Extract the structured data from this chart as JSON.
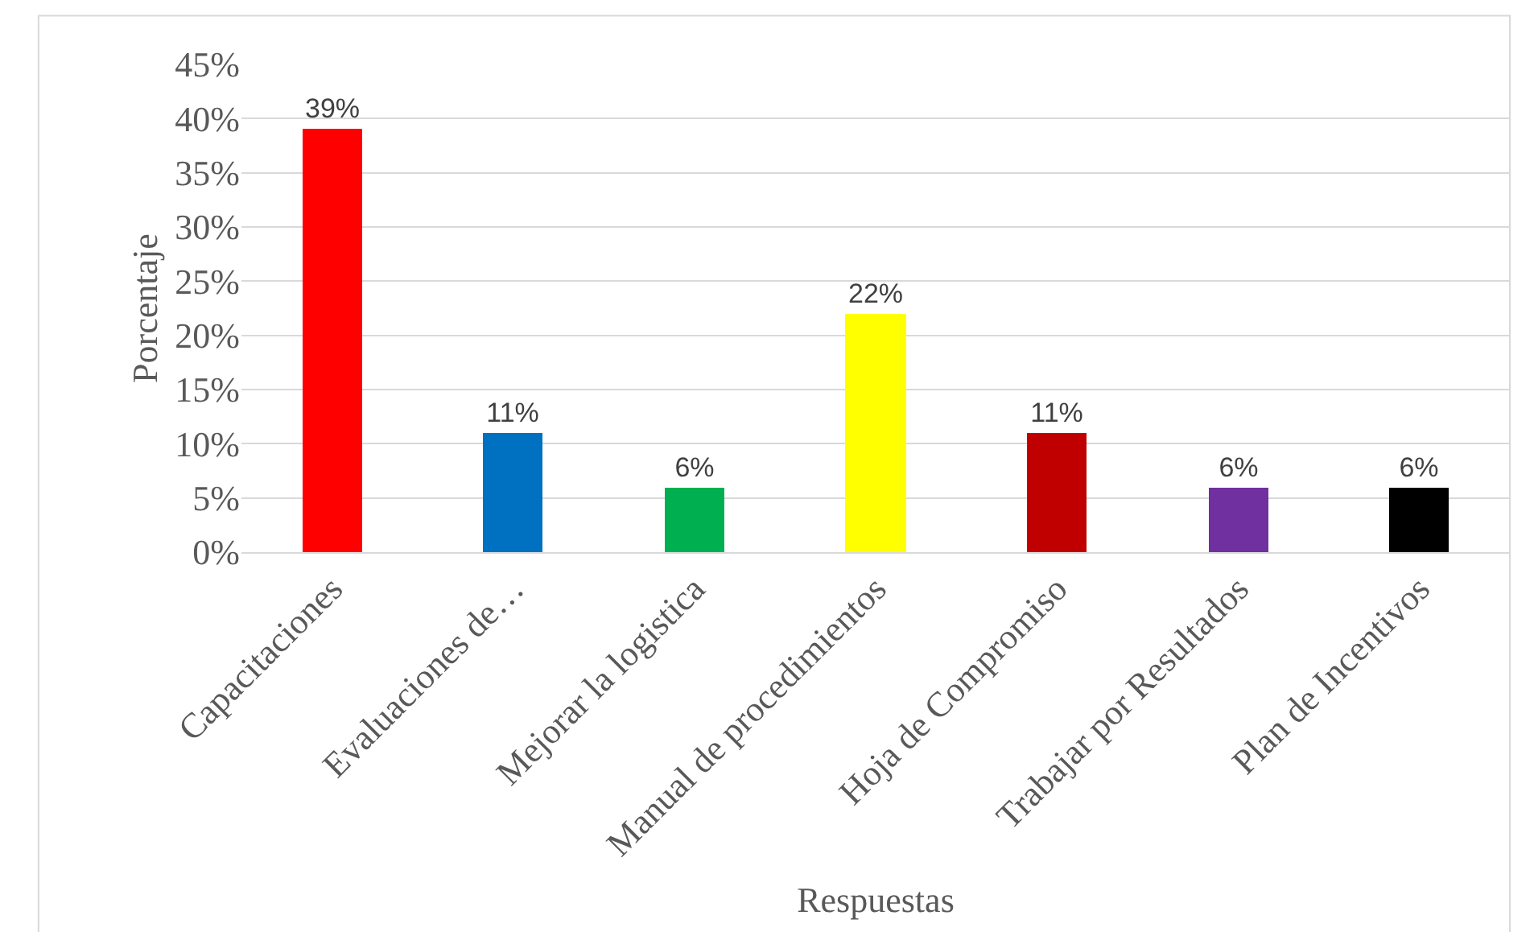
{
  "chart_data": {
    "type": "bar",
    "xlabel": "Respuestas",
    "ylabel": "Porcentaje",
    "categories": [
      "Capacitaciones",
      "Evaluaciones de…",
      "Mejorar la logistica",
      "Manual de procedimientos",
      "Hoja de Compromiso",
      "Trabajar por Resultados",
      "Plan de Incentivos"
    ],
    "values": [
      39,
      11,
      6,
      22,
      11,
      6,
      6
    ],
    "colors": [
      "#ff0000",
      "#0070c0",
      "#00b050",
      "#ffff00",
      "#c00000",
      "#7030a0",
      "#000000"
    ],
    "value_labels": [
      "39%",
      "11%",
      "6%",
      "22%",
      "11%",
      "6%",
      "6%"
    ],
    "ylim": [
      0,
      45
    ],
    "yticks": [
      {
        "value": 0,
        "label": "0%"
      },
      {
        "value": 5,
        "label": "5%"
      },
      {
        "value": 10,
        "label": "10%"
      },
      {
        "value": 15,
        "label": "15%"
      },
      {
        "value": 20,
        "label": "20%"
      },
      {
        "value": 25,
        "label": "25%"
      },
      {
        "value": 30,
        "label": "30%"
      },
      {
        "value": 35,
        "label": "35%"
      },
      {
        "value": 40,
        "label": "40%"
      },
      {
        "value": 45,
        "label": "45%"
      }
    ],
    "grid": "y",
    "legend": false
  }
}
